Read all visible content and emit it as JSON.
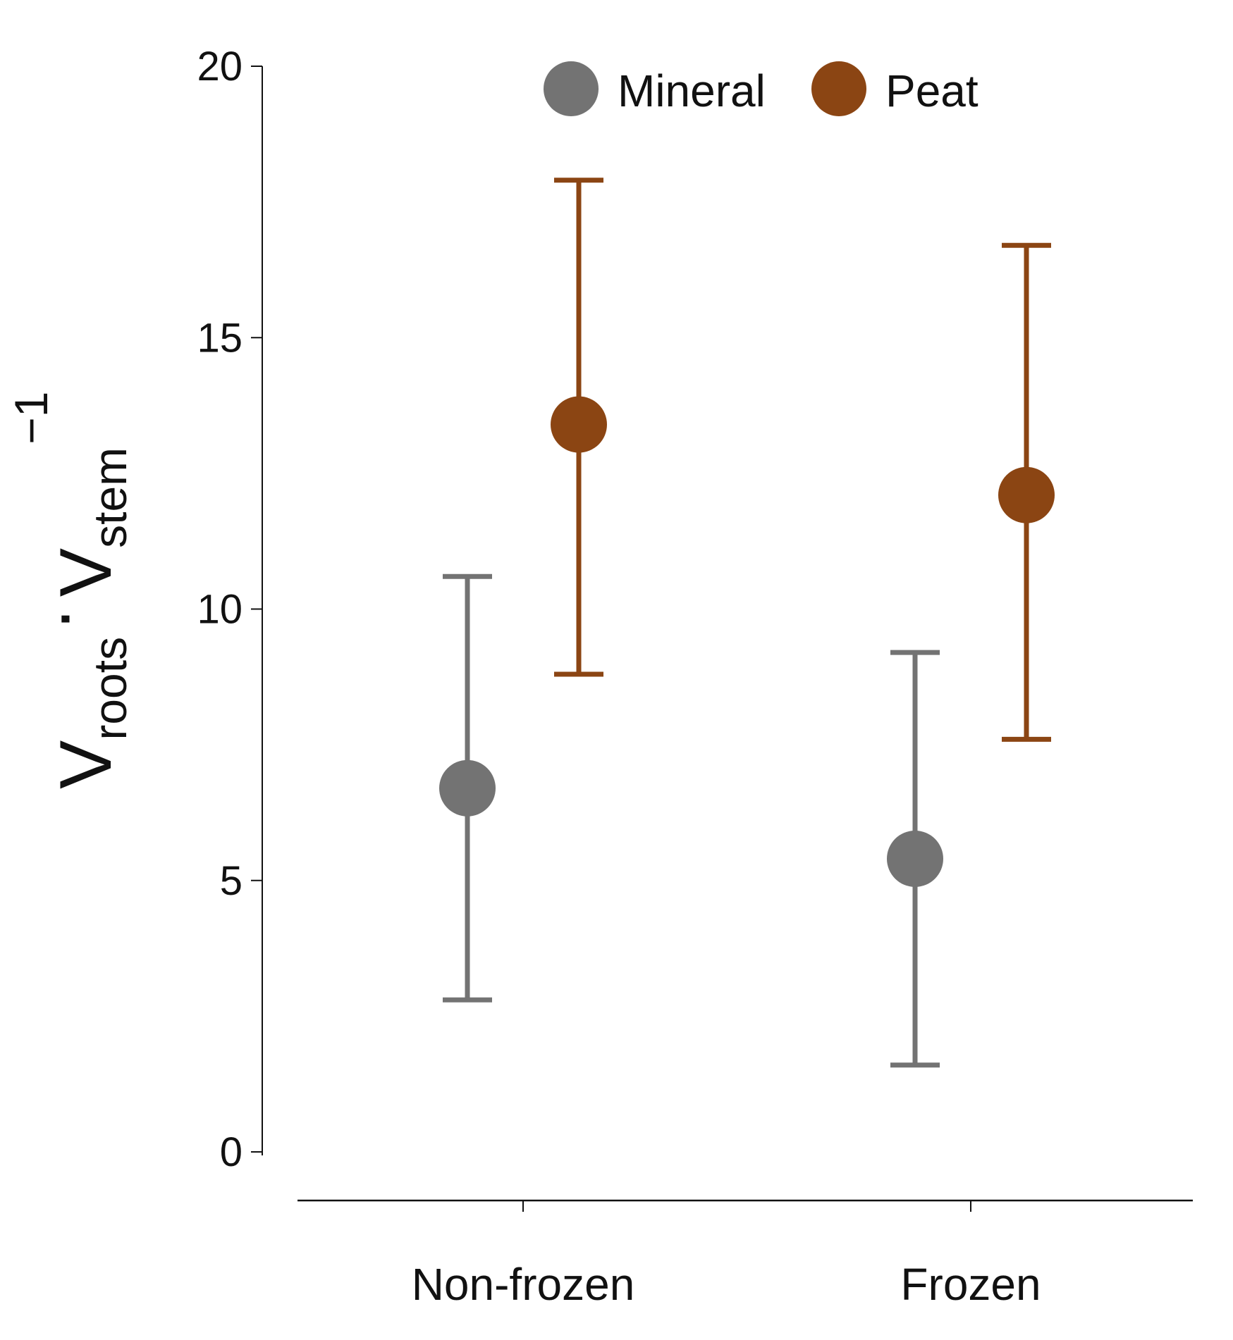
{
  "chart_data": {
    "type": "scatter",
    "title": "",
    "categories": [
      "Non-frozen",
      "Frozen"
    ],
    "ylim": [
      0,
      20
    ],
    "y_ticks": [
      0,
      5,
      10,
      15,
      20
    ],
    "y_tick_labels": [
      "0",
      "5",
      "10",
      "15",
      "20"
    ],
    "grid": false,
    "legend_position": "top-center",
    "xlabel": "",
    "ylabel": {
      "base": "V",
      "sub1": "roots",
      "dot": "·",
      "base2": "V",
      "sub2": "stem",
      "sup": "−1"
    },
    "series": [
      {
        "name": "Mineral",
        "color": "#737373",
        "values": [
          6.7,
          5.4
        ],
        "lower": [
          2.8,
          1.6
        ],
        "upper": [
          10.6,
          9.2
        ]
      },
      {
        "name": "Peat",
        "color": "#8B4513",
        "values": [
          13.4,
          12.1
        ],
        "lower": [
          8.8,
          7.6
        ],
        "upper": [
          17.9,
          16.7
        ]
      }
    ]
  }
}
